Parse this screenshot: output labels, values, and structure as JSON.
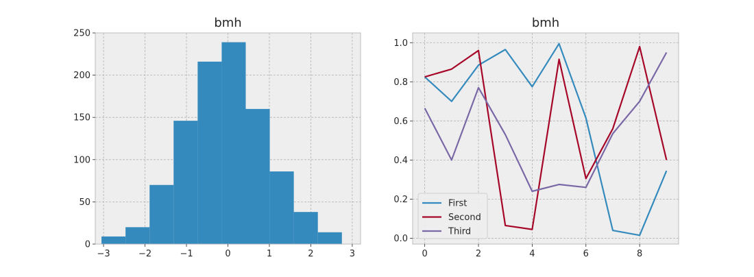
{
  "chart_data": [
    {
      "type": "bar",
      "subtype": "histogram",
      "title": "bmh",
      "xlabel": "",
      "ylabel": "",
      "xlim": [
        -3.2,
        3.2
      ],
      "ylim": [
        0,
        250
      ],
      "grid": true,
      "color": "#348abd",
      "bins": [
        {
          "start": -3.05,
          "end": -2.47,
          "count": 9
        },
        {
          "start": -2.47,
          "end": -1.89,
          "count": 20
        },
        {
          "start": -1.89,
          "end": -1.31,
          "count": 70
        },
        {
          "start": -1.31,
          "end": -0.73,
          "count": 146
        },
        {
          "start": -0.73,
          "end": -0.15,
          "count": 216
        },
        {
          "start": -0.15,
          "end": 0.43,
          "count": 239
        },
        {
          "start": 0.43,
          "end": 1.01,
          "count": 160
        },
        {
          "start": 1.01,
          "end": 1.59,
          "count": 86
        },
        {
          "start": 1.59,
          "end": 2.17,
          "count": 38
        },
        {
          "start": 2.17,
          "end": 2.75,
          "count": 14
        }
      ],
      "xticks": [
        -3,
        -2,
        -1,
        0,
        1,
        2,
        3
      ],
      "xtick_labels": [
        "−3",
        "−2",
        "−1",
        "0",
        "1",
        "2",
        "3"
      ],
      "yticks": [
        0,
        50,
        100,
        150,
        200,
        250
      ],
      "ytick_labels": [
        "0",
        "50",
        "100",
        "150",
        "200",
        "250"
      ]
    },
    {
      "type": "line",
      "title": "bmh",
      "xlabel": "",
      "ylabel": "",
      "xlim": [
        -0.45,
        9.45
      ],
      "ylim": [
        -0.03,
        1.05
      ],
      "grid": true,
      "legend_position": "lower-left",
      "x": [
        0,
        1,
        2,
        3,
        4,
        5,
        6,
        7,
        8,
        9
      ],
      "series": [
        {
          "name": "First",
          "color": "#348abd",
          "values": [
            0.825,
            0.7,
            0.885,
            0.965,
            0.775,
            0.995,
            0.615,
            0.04,
            0.015,
            0.345
          ]
        },
        {
          "name": "Second",
          "color": "#a60628",
          "values": [
            0.825,
            0.865,
            0.96,
            0.065,
            0.045,
            0.915,
            0.305,
            0.56,
            0.98,
            0.4
          ]
        },
        {
          "name": "Third",
          "color": "#7a68a6",
          "values": [
            0.665,
            0.4,
            0.77,
            0.53,
            0.24,
            0.275,
            0.26,
            0.535,
            0.7,
            0.95
          ]
        }
      ],
      "xticks": [
        0,
        2,
        4,
        6,
        8
      ],
      "xtick_labels": [
        "0",
        "2",
        "4",
        "6",
        "8"
      ],
      "yticks": [
        0.0,
        0.2,
        0.4,
        0.6,
        0.8,
        1.0
      ],
      "ytick_labels": [
        "0.0",
        "0.2",
        "0.4",
        "0.6",
        "0.8",
        "1.0"
      ]
    }
  ]
}
